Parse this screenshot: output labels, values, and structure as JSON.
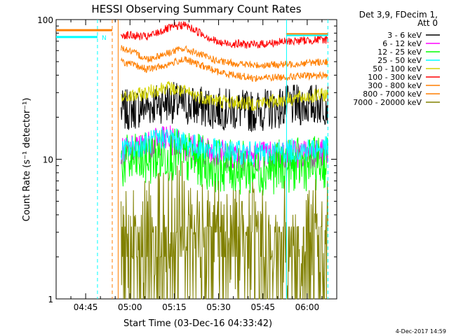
{
  "chart_data": {
    "type": "line",
    "title": "HESSI Observing Summary Count Rates",
    "ylabel": "Count Rate (s⁻¹ detector⁻¹)",
    "xlabel": "Start Time (03-Dec-16 04:33:42)",
    "y_scale": "log",
    "ylim": [
      1,
      100
    ],
    "y_ticks": [
      1,
      10,
      100
    ],
    "x_range": [
      "04:35",
      "06:10"
    ],
    "x_ticks": [
      "04:45",
      "05:00",
      "05:15",
      "05:30",
      "05:45",
      "06:00"
    ],
    "legend_title": [
      "Det 3,9, FDecim 1,",
      "Att 0"
    ],
    "legend_position": "right",
    "footer_date": "4-Dec-2017 14:59",
    "flag_label": "N",
    "colors": {
      "3-6": "#000000",
      "6-12": "#ff00ff",
      "12-25": "#00ff00",
      "25-50": "#00ffff",
      "50-100": "#d4d400",
      "100-300": "#ff0000",
      "300-800": "#ff7f00",
      "800-7000": "#ff7f00",
      "7000-20000": "#808000"
    },
    "series": [
      {
        "name": "3 - 6 keV",
        "color_key": "3-6",
        "start": "04:57",
        "end": "06:07",
        "points": [
          [
            4.95,
            22
          ],
          [
            5.1,
            24
          ],
          [
            5.2,
            26
          ],
          [
            5.35,
            24
          ],
          [
            5.5,
            23
          ],
          [
            5.7,
            22
          ],
          [
            5.9,
            24
          ],
          [
            6.1,
            25
          ]
        ]
      },
      {
        "name": "6 - 12 keV",
        "color_key": "6-12",
        "start": "04:57",
        "end": "06:07",
        "points": [
          [
            4.95,
            11
          ],
          [
            5.1,
            12.5
          ],
          [
            5.2,
            14
          ],
          [
            5.35,
            12
          ],
          [
            5.5,
            11
          ],
          [
            5.7,
            10.5
          ],
          [
            5.9,
            11
          ],
          [
            6.1,
            11
          ]
        ]
      },
      {
        "name": "12 - 25 keV",
        "color_key": "12-25",
        "start": "04:57",
        "end": "06:07",
        "points": [
          [
            4.95,
            9.5
          ],
          [
            5.1,
            10
          ],
          [
            5.2,
            11
          ],
          [
            5.35,
            10
          ],
          [
            5.5,
            9
          ],
          [
            5.7,
            8.5
          ],
          [
            5.9,
            9
          ],
          [
            6.1,
            9.5
          ]
        ]
      },
      {
        "name": "25 - 50 keV",
        "color_key": "25-50",
        "start": "04:57",
        "end": "06:07",
        "points": [
          [
            4.95,
            11.5
          ],
          [
            5.1,
            13
          ],
          [
            5.2,
            14.5
          ],
          [
            5.35,
            12.5
          ],
          [
            5.5,
            11.5
          ],
          [
            5.7,
            11
          ],
          [
            5.9,
            11.5
          ],
          [
            6.1,
            12
          ]
        ]
      },
      {
        "name": "50 - 100 keV",
        "color_key": "50-100",
        "start": "04:57",
        "end": "06:07",
        "points": [
          [
            4.95,
            27
          ],
          [
            5.1,
            30
          ],
          [
            5.2,
            33
          ],
          [
            5.35,
            29
          ],
          [
            5.5,
            26
          ],
          [
            5.7,
            25
          ],
          [
            5.9,
            27
          ],
          [
            6.1,
            29
          ]
        ]
      },
      {
        "name": "100 - 300 keV",
        "color_key": "100-300",
        "start": "04:57",
        "end": "06:07",
        "points": [
          [
            4.95,
            78
          ],
          [
            5.1,
            75
          ],
          [
            5.2,
            85
          ],
          [
            5.3,
            92
          ],
          [
            5.4,
            80
          ],
          [
            5.5,
            68
          ],
          [
            5.7,
            66
          ],
          [
            5.9,
            70
          ],
          [
            6.1,
            72
          ]
        ]
      },
      {
        "name": "300 - 800 keV",
        "color_key": "300-800",
        "start": "04:57",
        "end": "06:07",
        "points": [
          [
            4.95,
            63
          ],
          [
            5.1,
            52
          ],
          [
            5.2,
            57
          ],
          [
            5.3,
            62
          ],
          [
            5.4,
            56
          ],
          [
            5.5,
            50
          ],
          [
            5.7,
            47
          ],
          [
            5.9,
            48
          ],
          [
            6.1,
            50
          ]
        ]
      },
      {
        "name": "800 - 7000 keV",
        "color_key": "800-7000",
        "start": "04:57",
        "end": "06:07",
        "points": [
          [
            4.95,
            50
          ],
          [
            5.1,
            44
          ],
          [
            5.2,
            47
          ],
          [
            5.3,
            52
          ],
          [
            5.4,
            47
          ],
          [
            5.5,
            42
          ],
          [
            5.7,
            38
          ],
          [
            5.9,
            39
          ],
          [
            6.1,
            40
          ]
        ]
      },
      {
        "name": "7000 - 20000 keV",
        "color_key": "7000-20000",
        "start": "04:57",
        "end": "06:07",
        "points": [
          [
            4.95,
            2.6
          ],
          [
            5.1,
            3
          ],
          [
            5.2,
            3.5
          ],
          [
            5.3,
            4
          ],
          [
            5.4,
            3.4
          ],
          [
            5.5,
            2.8
          ],
          [
            5.7,
            2.8
          ],
          [
            5.9,
            2.8
          ],
          [
            6.1,
            3
          ]
        ]
      }
    ],
    "vertical_markers": [
      {
        "time": "04:49",
        "style": "dashed",
        "color_key": "25-50"
      },
      {
        "time": "04:54",
        "style": "dashed",
        "color_key": "300-800"
      },
      {
        "time": "04:56",
        "style": "solid",
        "color_key": "300-800"
      },
      {
        "time": "05:53",
        "style": "solid",
        "color_key": "25-50"
      },
      {
        "time": "06:07",
        "style": "dashed",
        "color_key": "25-50"
      }
    ]
  }
}
